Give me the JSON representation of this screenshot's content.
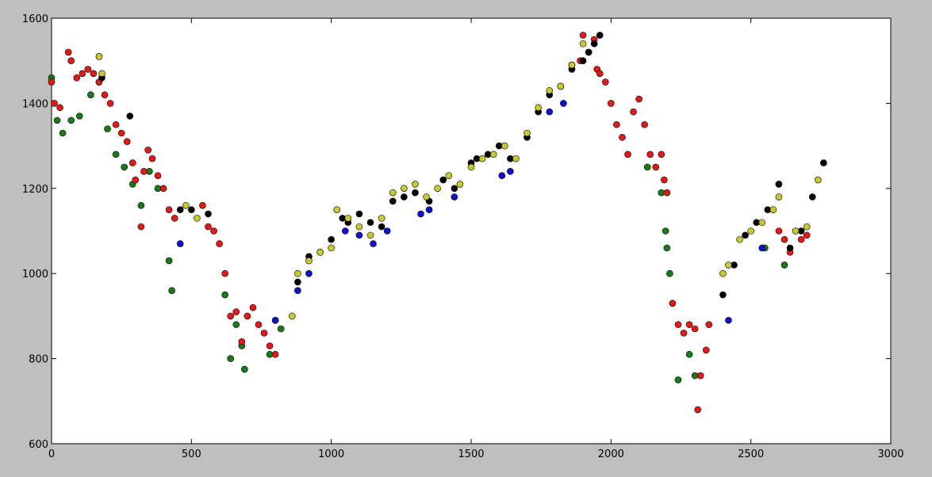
{
  "chart_data": {
    "type": "scatter",
    "title": "",
    "xlabel": "",
    "ylabel": "",
    "xlim": [
      0,
      3000
    ],
    "ylim": [
      600,
      1600
    ],
    "x_ticks": [
      "0",
      "500",
      "1000",
      "1500",
      "2000",
      "2500",
      "3000"
    ],
    "y_ticks": [
      "600",
      "800",
      "1000",
      "1200",
      "1400",
      "1600"
    ],
    "grid": false,
    "legend": "none",
    "colors": {
      "green": "#1a7a1a",
      "red": "#e31a1a",
      "blue": "#1010c8",
      "black": "#000000",
      "yellow": "#c8c832"
    },
    "series": [
      {
        "color": "green",
        "x": [
          0,
          20,
          40,
          70,
          100,
          140,
          170,
          200,
          230,
          260,
          290,
          320,
          350,
          380,
          420,
          430,
          620,
          640,
          660,
          680,
          690,
          780,
          800,
          820,
          2130,
          2180,
          2195,
          2200,
          2210,
          2240,
          2280,
          2300,
          2550,
          2620
        ],
        "y": [
          1460,
          1360,
          1330,
          1360,
          1370,
          1420,
          1450,
          1340,
          1280,
          1250,
          1210,
          1160,
          1240,
          1200,
          1030,
          960,
          950,
          800,
          880,
          830,
          775,
          810,
          890,
          870,
          1250,
          1190,
          1100,
          1060,
          1000,
          750,
          810,
          760,
          1060,
          1020
        ]
      },
      {
        "color": "red",
        "x": [
          0,
          10,
          30,
          60,
          70,
          90,
          110,
          130,
          150,
          170,
          190,
          210,
          230,
          250,
          270,
          290,
          300,
          320,
          330,
          345,
          360,
          380,
          400,
          420,
          440,
          540,
          560,
          580,
          600,
          620,
          640,
          660,
          680,
          700,
          720,
          740,
          760,
          780,
          800,
          1890,
          1900,
          1920,
          1940,
          1950,
          1960,
          1980,
          2000,
          2020,
          2040,
          2060,
          2080,
          2100,
          2120,
          2140,
          2160,
          2180,
          2190,
          2200,
          2220,
          2240,
          2260,
          2280,
          2300,
          2310,
          2320,
          2340,
          2350,
          2600,
          2620,
          2640,
          2660,
          2680,
          2700
        ],
        "y": [
          1450,
          1400,
          1390,
          1520,
          1500,
          1460,
          1470,
          1480,
          1470,
          1450,
          1420,
          1400,
          1350,
          1330,
          1310,
          1260,
          1220,
          1110,
          1240,
          1290,
          1270,
          1230,
          1200,
          1150,
          1130,
          1160,
          1110,
          1100,
          1070,
          1000,
          900,
          910,
          840,
          900,
          920,
          880,
          860,
          830,
          810,
          1500,
          1560,
          1520,
          1550,
          1480,
          1470,
          1450,
          1400,
          1350,
          1320,
          1280,
          1380,
          1410,
          1350,
          1280,
          1250,
          1280,
          1220,
          1190,
          930,
          880,
          860,
          880,
          870,
          680,
          760,
          820,
          880,
          1100,
          1080,
          1050,
          1100,
          1080,
          1090
        ]
      },
      {
        "color": "blue",
        "x": [
          460,
          800,
          880,
          920,
          1050,
          1100,
          1150,
          1200,
          1320,
          1350,
          1440,
          1610,
          1640,
          1780,
          1830,
          1860,
          2420,
          2540,
          2600
        ],
        "y": [
          1070,
          890,
          960,
          1000,
          1100,
          1090,
          1070,
          1100,
          1140,
          1150,
          1180,
          1230,
          1240,
          1380,
          1400,
          1490,
          890,
          1060,
          1210
        ]
      },
      {
        "color": "black",
        "x": [
          170,
          180,
          280,
          460,
          500,
          560,
          880,
          920,
          960,
          1000,
          1040,
          1060,
          1100,
          1140,
          1180,
          1220,
          1260,
          1300,
          1350,
          1400,
          1440,
          1500,
          1520,
          1560,
          1600,
          1640,
          1700,
          1740,
          1780,
          1820,
          1860,
          1900,
          1920,
          1940,
          1960,
          2400,
          2440,
          2480,
          2520,
          2560,
          2600,
          2640,
          2680,
          2720,
          2760
        ],
        "y": [
          1510,
          1460,
          1370,
          1150,
          1150,
          1140,
          980,
          1040,
          1050,
          1080,
          1130,
          1120,
          1140,
          1120,
          1110,
          1170,
          1180,
          1190,
          1170,
          1220,
          1200,
          1260,
          1270,
          1280,
          1300,
          1270,
          1320,
          1380,
          1420,
          1440,
          1480,
          1500,
          1520,
          1540,
          1560,
          950,
          1020,
          1090,
          1120,
          1150,
          1210,
          1060,
          1100,
          1180,
          1260
        ]
      },
      {
        "color": "yellow",
        "x": [
          170,
          180,
          480,
          520,
          860,
          880,
          920,
          960,
          1000,
          1020,
          1060,
          1100,
          1140,
          1180,
          1220,
          1260,
          1300,
          1340,
          1380,
          1420,
          1460,
          1500,
          1540,
          1580,
          1620,
          1660,
          1700,
          1740,
          1780,
          1820,
          1860,
          1900,
          2400,
          2420,
          2460,
          2500,
          2540,
          2580,
          2600,
          2660,
          2700,
          2740
        ],
        "y": [
          1510,
          1470,
          1160,
          1130,
          900,
          1000,
          1030,
          1050,
          1060,
          1150,
          1130,
          1110,
          1090,
          1130,
          1190,
          1200,
          1210,
          1180,
          1200,
          1230,
          1210,
          1250,
          1270,
          1280,
          1300,
          1270,
          1330,
          1390,
          1430,
          1440,
          1490,
          1540,
          1000,
          1020,
          1080,
          1100,
          1120,
          1150,
          1180,
          1100,
          1110,
          1220
        ]
      }
    ]
  }
}
